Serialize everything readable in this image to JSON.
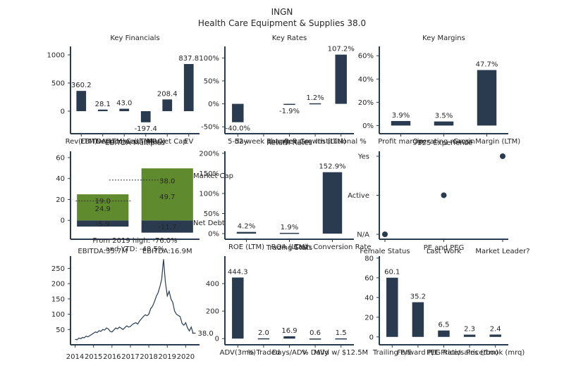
{
  "header": {
    "ticker": "INGN",
    "subtitle": "Health Care Equipment & Supplies 38.0"
  },
  "colors": {
    "navy": "#2a3b4f",
    "green": "#5f8a2e",
    "axis": "#2a3b4f",
    "text": "#262626"
  },
  "chart_data": [
    {
      "id": "key-financials",
      "type": "bar",
      "title": "Key Financials",
      "categories": [
        "Rev(LTM)",
        "EBITDA(LTM)",
        "NetIncome(LTM)",
        "Cash(MRQ)",
        "Market Cap",
        "EV"
      ],
      "values": [
        360.2,
        28.1,
        43.0,
        -197.4,
        208.4,
        837.8
      ],
      "value_labels": [
        "360.2",
        "28.1",
        "43.0",
        "-197.4",
        "208.4",
        "837.8"
      ],
      "ylim": [
        -400,
        1150
      ],
      "yticks": [
        "0",
        "500",
        "1000"
      ],
      "ytick_values": [
        0,
        500,
        1000
      ]
    },
    {
      "id": "key-rates",
      "type": "bar",
      "title": "Key Rates",
      "categories": [
        "5-day",
        "52-week change",
        "Return Rates",
        "Rev Growth (LTM)",
        "Institutional %"
      ],
      "values": [
        -40.0,
        null,
        -1.9,
        1.2,
        107.2
      ],
      "value_labels": [
        "-40.0%",
        "",
        "-1.9%",
        "1.2%",
        "107.2%"
      ],
      "ylim": [
        -65,
        125
      ],
      "yticks": [
        "-50%",
        "0%",
        "50%",
        "100%"
      ],
      "ytick_values": [
        -50,
        0,
        50,
        100
      ]
    },
    {
      "id": "key-margins",
      "type": "bar",
      "title": "Key Margins",
      "categories": [
        "Profit margin",
        "Operating margin",
        "Gross Margin (LTM)"
      ],
      "values": [
        3.9,
        3.5,
        47.7
      ],
      "value_labels": [
        "3.9%",
        "3.5%",
        "47.7%"
      ],
      "ylim": [
        -7,
        68
      ],
      "yticks": [
        "0%",
        "20%",
        "40%",
        "60%"
      ],
      "ytick_values": [
        0,
        20,
        40,
        60
      ]
    },
    {
      "id": "ebitda-multiples",
      "type": "bar",
      "title": "EBITDA Multiples",
      "categories": [
        "EBITDA:35.7M",
        "EBITDA:16.9M"
      ],
      "series": [
        {
          "stack": [
            {
              "value": -5.9,
              "label": "-5.9"
            },
            {
              "value": 24.9,
              "label": "24.9"
            }
          ]
        },
        {
          "stack": [
            {
              "value": -11.7,
              "label": "-11.7"
            },
            {
              "value": 49.7,
              "label": "49.7"
            }
          ]
        }
      ],
      "line_labels": [
        "19.0",
        "38.0"
      ],
      "line_values": [
        19.0,
        38.0
      ],
      "line_values_dotted": [
        18.5,
        38.5
      ],
      "right_labels": [
        "Market Cap",
        "Net Debt"
      ],
      "right_values": [
        43.0,
        -2.0
      ],
      "ylim": [
        -18,
        66
      ],
      "yticks": [
        "0",
        "20",
        "40",
        "60"
      ],
      "ytick_values": [
        0,
        20,
        40,
        60
      ],
      "caption": "From 2019 high: -76.0%",
      "caption2": "and YTD: -48.5%"
    },
    {
      "id": "return-rates",
      "type": "bar",
      "title": "Return Rates",
      "categories": [
        "ROE (LTM)",
        "ROA (LTM)",
        "Cash Conversion Rate"
      ],
      "values": [
        4.2,
        1.9,
        152.9
      ],
      "value_labels": [
        "4.2%",
        "1.9%",
        "152.9%"
      ],
      "ylim": [
        -14,
        205
      ],
      "yticks": [
        "0%",
        "50%",
        "100%",
        "150%",
        "200%"
      ],
      "ytick_values": [
        0,
        50,
        100,
        150,
        200
      ]
    },
    {
      "id": "experience",
      "type": "scatter",
      "title": "-325 Experience",
      "categories": [
        "Female Status",
        "Last Work",
        "Market Leader?"
      ],
      "ycategories": [
        "N/A",
        "Active",
        "Yes"
      ],
      "points": [
        {
          "x": 0,
          "y": 0
        },
        {
          "x": 1,
          "y": 1
        },
        {
          "x": 2,
          "y": 2
        }
      ]
    },
    {
      "id": "price-history",
      "type": "line",
      "title": "",
      "xticks": [
        "2014",
        "2015",
        "2016",
        "2017",
        "2018",
        "2019",
        "2020"
      ],
      "xlim": [
        2013.75,
        2020.75
      ],
      "ylim": [
        0,
        290
      ],
      "yticks": [
        "50",
        "100",
        "150",
        "200",
        "250"
      ],
      "ytick_values": [
        50,
        100,
        150,
        200,
        250
      ],
      "end_label": "38.0",
      "x": [
        2014.0,
        2014.1,
        2014.2,
        2014.3,
        2014.4,
        2014.5,
        2014.6,
        2014.7,
        2014.8,
        2014.9,
        2015.0,
        2015.1,
        2015.2,
        2015.3,
        2015.4,
        2015.5,
        2015.6,
        2015.7,
        2015.8,
        2015.9,
        2016.0,
        2016.1,
        2016.2,
        2016.3,
        2016.4,
        2016.5,
        2016.6,
        2016.7,
        2016.8,
        2016.9,
        2017.0,
        2017.1,
        2017.2,
        2017.3,
        2017.4,
        2017.5,
        2017.6,
        2017.7,
        2017.8,
        2017.9,
        2018.0,
        2018.1,
        2018.2,
        2018.3,
        2018.4,
        2018.5,
        2018.6,
        2018.7,
        2018.75,
        2018.8,
        2018.85,
        2018.9,
        2019.0,
        2019.1,
        2019.2,
        2019.3,
        2019.4,
        2019.5,
        2019.6,
        2019.7,
        2019.8,
        2019.9,
        2020.0,
        2020.1,
        2020.2,
        2020.3,
        2020.4,
        2020.5
      ],
      "y": [
        18,
        16,
        22,
        20,
        24,
        23,
        28,
        26,
        30,
        34,
        38,
        42,
        40,
        46,
        44,
        50,
        48,
        55,
        52,
        44,
        42,
        48,
        55,
        52,
        58,
        54,
        50,
        56,
        62,
        58,
        60,
        66,
        70,
        72,
        68,
        78,
        85,
        92,
        98,
        95,
        100,
        118,
        126,
        140,
        158,
        170,
        190,
        215,
        250,
        280,
        240,
        205,
        160,
        175,
        150,
        138,
        110,
        100,
        96,
        92,
        70,
        64,
        72,
        55,
        45,
        58,
        38,
        38
      ]
    },
    {
      "id": "trading-stats",
      "type": "bar",
      "title": "Trading Stats",
      "categories": [
        "ADV(3mo)",
        "% Traded",
        "Days/ADV",
        "% Daily",
        "MVd w/ $12.5M"
      ],
      "values": [
        444.3,
        2.0,
        16.9,
        0.6,
        1.5
      ],
      "value_labels": [
        "444.3",
        "2.0",
        "16.9",
        "0.6",
        "1.5"
      ],
      "ylim": [
        -45,
        600
      ],
      "yticks": [
        "0",
        "200",
        "400"
      ],
      "ytick_values": [
        0,
        200,
        400
      ]
    },
    {
      "id": "pe-peg",
      "type": "bar",
      "title": "PE and PEG",
      "categories": [
        "Trailing P/E",
        "Forward P/E",
        "PEG Ratio",
        "Price/sales (ttm)",
        "Price/book (mrq)"
      ],
      "values": [
        60.1,
        35.2,
        6.5,
        2.3,
        2.4
      ],
      "value_labels": [
        "60.1",
        "35.2",
        "6.5",
        "2.3",
        "2.4"
      ],
      "ylim": [
        -8,
        82
      ],
      "yticks": [
        "0",
        "20",
        "40",
        "60",
        "80"
      ],
      "ytick_values": [
        0,
        20,
        40,
        60,
        80
      ]
    }
  ]
}
